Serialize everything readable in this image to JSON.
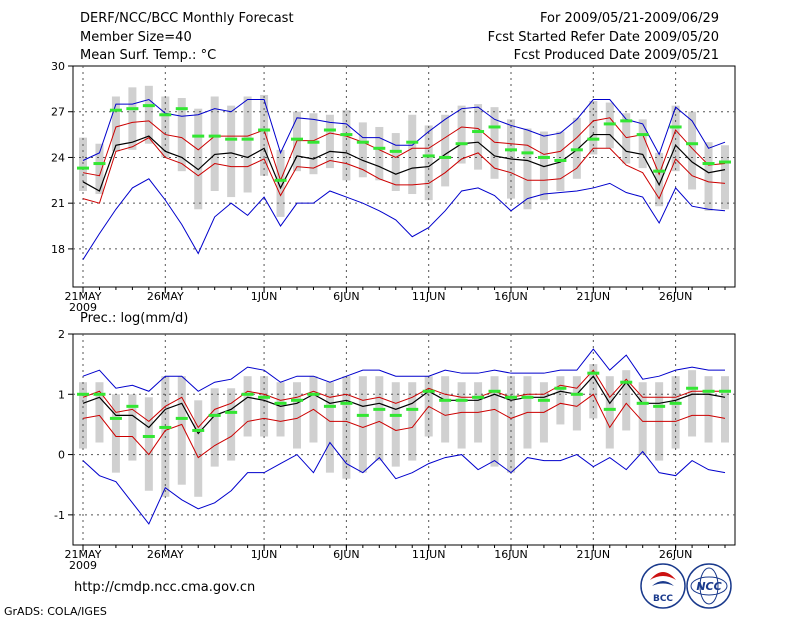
{
  "header": {
    "title": "DERF/NCC/BCC Monthly Forecast",
    "member": "Member Size=40",
    "variable": "Mean Surf. Temp.: °C",
    "period": "For 2009/05/21-2009/06/29",
    "started": "Fcst Started Refer Date 2009/05/20",
    "produced": "Fcst Produced Date 2009/05/21"
  },
  "footer": {
    "url": "http://cmdp.ncc.cma.gov.cn",
    "grads": "GrADS: COLA/IGES",
    "logo_left_text": "BCC",
    "logo_right_text": "NCC"
  },
  "colors": {
    "box": "#d0d0d0",
    "median": "#33e633",
    "mean": "#000000",
    "spread": "#cc0000",
    "extreme": "#0000cc",
    "grid": "#555555"
  },
  "chart_data": [
    {
      "type": "line",
      "title": "",
      "ylabel": "Mean Surf. Temp.: °C",
      "ylim": [
        15.5,
        30
      ],
      "yticks": [
        18,
        21,
        24,
        27,
        30
      ],
      "xtick_labels": [
        "21MAY",
        "26MAY",
        "1JUN",
        "6JUN",
        "11JUN",
        "16JUN",
        "21JUN",
        "26JUN"
      ],
      "xtick_days": [
        0,
        5,
        11,
        16,
        21,
        26,
        31,
        36
      ],
      "year_label": "2009",
      "x_days": [
        0,
        1,
        2,
        3,
        4,
        5,
        6,
        7,
        8,
        9,
        10,
        11,
        12,
        13,
        14,
        15,
        16,
        17,
        18,
        19,
        20,
        21,
        22,
        23,
        24,
        25,
        26,
        27,
        28,
        29,
        30,
        31,
        32,
        33,
        34,
        35,
        36,
        37,
        38,
        39
      ],
      "series": [
        {
          "name": "max",
          "role": "extreme",
          "values": [
            17.3,
            19.0,
            20.6,
            22.0,
            22.6,
            21.2,
            19.6,
            17.7,
            20.1,
            21.0,
            20.2,
            21.4,
            19.5,
            21.0,
            21.0,
            21.8,
            21.4,
            21.0,
            20.5,
            19.9,
            18.8,
            19.4,
            20.5,
            21.8,
            22.0,
            21.5,
            20.5,
            21.3,
            21.6,
            21.7,
            21.8,
            22.0,
            22.3,
            21.7,
            21.4,
            19.7,
            22.0,
            20.8,
            20.6,
            20.5
          ]
        },
        {
          "name": "min",
          "role": "extreme",
          "values": [
            23.8,
            24.3,
            27.5,
            27.5,
            27.8,
            26.9,
            26.7,
            26.8,
            27.2,
            27.0,
            27.8,
            27.8,
            24.3,
            26.6,
            26.5,
            26.3,
            26.2,
            25.3,
            25.3,
            24.8,
            24.8,
            25.7,
            26.5,
            27.2,
            27.3,
            26.5,
            26.1,
            25.8,
            25.4,
            25.6,
            26.5,
            27.8,
            27.8,
            26.5,
            26.2,
            24.2,
            27.3,
            26.4,
            24.6,
            25.0
          ]
        },
        {
          "name": "p_upper",
          "role": "spread",
          "values": [
            23.0,
            22.8,
            26.0,
            26.3,
            26.4,
            25.5,
            25.3,
            24.5,
            25.4,
            25.4,
            25.4,
            25.8,
            22.5,
            25.1,
            25.1,
            25.6,
            25.4,
            25.0,
            24.5,
            24.0,
            24.6,
            24.6,
            25.3,
            26.0,
            25.9,
            25.0,
            24.9,
            24.8,
            24.2,
            24.4,
            25.3,
            26.4,
            26.6,
            25.3,
            25.5,
            22.9,
            25.8,
            24.6,
            23.5,
            23.6
          ]
        },
        {
          "name": "mean",
          "role": "mean",
          "values": [
            22.4,
            21.8,
            24.8,
            25.0,
            25.4,
            24.4,
            24.0,
            23.2,
            24.2,
            24.3,
            24.0,
            24.6,
            22.0,
            24.1,
            23.9,
            24.4,
            24.3,
            23.8,
            23.4,
            22.9,
            23.3,
            23.4,
            24.2,
            24.9,
            25.0,
            24.1,
            23.9,
            23.8,
            23.4,
            23.7,
            24.5,
            25.5,
            25.5,
            24.4,
            24.2,
            22.2,
            24.8,
            23.7,
            23.0,
            23.2
          ]
        },
        {
          "name": "p_lower",
          "role": "spread",
          "values": [
            21.3,
            21.0,
            24.4,
            24.7,
            25.3,
            24.0,
            23.6,
            22.8,
            23.6,
            23.4,
            23.4,
            23.9,
            21.5,
            23.4,
            23.3,
            23.8,
            23.6,
            23.2,
            22.6,
            22.2,
            22.2,
            22.3,
            23.0,
            23.9,
            24.3,
            23.3,
            23.0,
            22.5,
            22.5,
            22.6,
            23.3,
            24.6,
            24.6,
            23.5,
            23.0,
            21.3,
            23.9,
            22.8,
            22.4,
            22.3
          ]
        },
        {
          "name": "median",
          "role": "median",
          "values": [
            23.3,
            23.6,
            27.1,
            27.2,
            27.4,
            26.8,
            27.2,
            25.4,
            25.4,
            25.2,
            25.2,
            25.8,
            22.5,
            25.2,
            25.0,
            25.8,
            25.5,
            25.0,
            24.6,
            24.4,
            25.0,
            24.1,
            24.0,
            24.9,
            25.7,
            26.0,
            24.5,
            24.3,
            24.0,
            23.8,
            24.5,
            25.2,
            26.2,
            26.4,
            25.5,
            23.1,
            26.0,
            24.9,
            23.6,
            23.7
          ]
        },
        {
          "name": "box_low",
          "role": "box",
          "values": [
            21.8,
            21.6,
            24.4,
            24.5,
            24.9,
            24.0,
            23.1,
            20.6,
            21.8,
            21.4,
            21.7,
            22.8,
            20.1,
            23.1,
            22.9,
            23.3,
            22.5,
            22.7,
            22.5,
            21.8,
            21.6,
            21.2,
            22.1,
            23.6,
            23.2,
            22.6,
            21.3,
            20.6,
            21.2,
            21.8,
            22.6,
            24.2,
            24.6,
            23.6,
            23.3,
            20.8,
            23.1,
            21.9,
            20.5,
            20.6
          ]
        },
        {
          "name": "box_high",
          "role": "box",
          "values": [
            25.3,
            24.9,
            28.0,
            28.6,
            28.7,
            28.0,
            27.9,
            27.2,
            28.0,
            27.4,
            28.0,
            28.1,
            24.5,
            27.0,
            26.9,
            26.8,
            27.1,
            26.3,
            26.0,
            25.6,
            26.8,
            26.1,
            26.8,
            27.4,
            27.5,
            27.3,
            26.5,
            25.9,
            25.7,
            25.7,
            26.6,
            27.7,
            27.6,
            26.9,
            26.5,
            24.3,
            27.4,
            27.0,
            25.0,
            24.8
          ]
        }
      ]
    },
    {
      "type": "line",
      "title": "",
      "ylabel": "Prec.: log(mm/d)",
      "ylim": [
        -1.5,
        2
      ],
      "yticks": [
        -1,
        0,
        1,
        2
      ],
      "xtick_labels": [
        "21MAY",
        "26MAY",
        "1JUN",
        "6JUN",
        "11JUN",
        "16JUN",
        "21JUN",
        "26JUN"
      ],
      "xtick_days": [
        0,
        5,
        11,
        16,
        21,
        26,
        31,
        36
      ],
      "year_label": "2009",
      "x_days": [
        0,
        1,
        2,
        3,
        4,
        5,
        6,
        7,
        8,
        9,
        10,
        11,
        12,
        13,
        14,
        15,
        16,
        17,
        18,
        19,
        20,
        21,
        22,
        23,
        24,
        25,
        26,
        27,
        28,
        29,
        30,
        31,
        32,
        33,
        34,
        35,
        36,
        37,
        38,
        39
      ],
      "series": [
        {
          "name": "max",
          "role": "extreme",
          "values": [
            1.3,
            1.4,
            1.1,
            1.15,
            1.05,
            1.3,
            1.3,
            1.05,
            1.2,
            1.25,
            1.45,
            1.4,
            1.2,
            1.3,
            1.3,
            1.2,
            1.3,
            1.4,
            1.4,
            1.3,
            1.3,
            1.3,
            1.4,
            1.35,
            1.35,
            1.4,
            1.35,
            1.35,
            1.35,
            1.4,
            1.4,
            1.75,
            1.4,
            1.65,
            1.25,
            1.3,
            1.4,
            1.45,
            1.4,
            1.4
          ]
        },
        {
          "name": "min",
          "role": "extreme",
          "values": [
            -0.1,
            -0.35,
            -0.45,
            -0.8,
            -1.15,
            -0.55,
            -0.75,
            -0.9,
            -0.8,
            -0.6,
            -0.3,
            -0.3,
            -0.15,
            0.0,
            -0.3,
            0.2,
            -0.15,
            -0.3,
            -0.05,
            -0.4,
            -0.3,
            -0.15,
            -0.05,
            0.0,
            -0.25,
            -0.1,
            -0.3,
            -0.05,
            -0.1,
            -0.1,
            0.0,
            -0.2,
            -0.05,
            -0.25,
            0.05,
            -0.3,
            -0.35,
            -0.1,
            -0.25,
            -0.3
          ]
        },
        {
          "name": "p_upper",
          "role": "spread",
          "values": [
            0.95,
            1.05,
            0.7,
            0.75,
            0.55,
            0.8,
            0.95,
            0.45,
            0.75,
            0.85,
            1.05,
            1.0,
            0.9,
            0.95,
            1.05,
            0.95,
            1.0,
            0.9,
            0.95,
            0.85,
            0.95,
            1.1,
            1.0,
            0.95,
            0.95,
            1.05,
            0.95,
            1.0,
            1.0,
            1.15,
            1.1,
            1.4,
            0.95,
            1.25,
            0.95,
            0.95,
            0.95,
            1.05,
            1.05,
            1.05
          ]
        },
        {
          "name": "mean",
          "role": "mean",
          "values": [
            0.85,
            0.95,
            0.65,
            0.65,
            0.45,
            0.75,
            0.85,
            0.35,
            0.65,
            0.75,
            0.95,
            0.9,
            0.8,
            0.85,
            1.0,
            0.85,
            0.9,
            0.8,
            0.85,
            0.75,
            0.85,
            1.05,
            0.9,
            0.9,
            0.9,
            1.0,
            0.9,
            0.95,
            0.95,
            1.05,
            1.0,
            1.3,
            0.85,
            1.2,
            0.85,
            0.85,
            0.9,
            1.0,
            1.0,
            0.95
          ]
        },
        {
          "name": "p_lower",
          "role": "spread",
          "values": [
            0.6,
            0.65,
            0.3,
            0.3,
            0.0,
            0.4,
            0.5,
            -0.05,
            0.15,
            0.3,
            0.55,
            0.6,
            0.55,
            0.6,
            0.75,
            0.55,
            0.55,
            0.45,
            0.55,
            0.4,
            0.45,
            0.8,
            0.65,
            0.7,
            0.7,
            0.75,
            0.6,
            0.7,
            0.7,
            0.85,
            0.8,
            1.0,
            0.45,
            0.85,
            0.55,
            0.55,
            0.55,
            0.65,
            0.65,
            0.6
          ]
        },
        {
          "name": "median",
          "role": "median",
          "values": [
            1.0,
            1.0,
            0.6,
            0.8,
            0.3,
            0.45,
            0.6,
            0.4,
            0.65,
            0.7,
            1.0,
            0.95,
            0.85,
            0.9,
            1.0,
            0.8,
            0.85,
            0.65,
            0.75,
            0.65,
            0.75,
            1.05,
            0.9,
            0.9,
            0.95,
            1.05,
            0.95,
            0.95,
            0.9,
            1.1,
            1.0,
            1.35,
            0.75,
            1.2,
            0.85,
            0.8,
            0.85,
            1.1,
            1.05,
            1.05
          ]
        },
        {
          "name": "box_low",
          "role": "box",
          "values": [
            0.1,
            0.2,
            -0.3,
            -0.1,
            -0.6,
            -0.7,
            -0.5,
            -0.7,
            -0.2,
            -0.1,
            0.3,
            0.3,
            0.3,
            0.1,
            0.2,
            -0.3,
            -0.4,
            -0.3,
            -0.1,
            -0.2,
            -0.1,
            0.3,
            0.2,
            0.1,
            0.2,
            -0.2,
            -0.3,
            0.1,
            0.2,
            0.5,
            0.4,
            0.6,
            0.1,
            0.4,
            0.0,
            -0.1,
            0.1,
            0.3,
            0.2,
            0.2
          ]
        },
        {
          "name": "box_high",
          "role": "box",
          "values": [
            1.2,
            1.2,
            1.0,
            1.0,
            0.95,
            1.3,
            1.3,
            0.9,
            1.1,
            1.1,
            1.3,
            1.3,
            1.2,
            1.2,
            1.3,
            1.2,
            1.3,
            1.3,
            1.3,
            1.2,
            1.2,
            1.3,
            1.3,
            1.2,
            1.2,
            1.3,
            1.3,
            1.3,
            1.2,
            1.3,
            1.3,
            1.5,
            1.3,
            1.4,
            1.2,
            1.2,
            1.3,
            1.4,
            1.3,
            1.3
          ]
        }
      ]
    }
  ]
}
